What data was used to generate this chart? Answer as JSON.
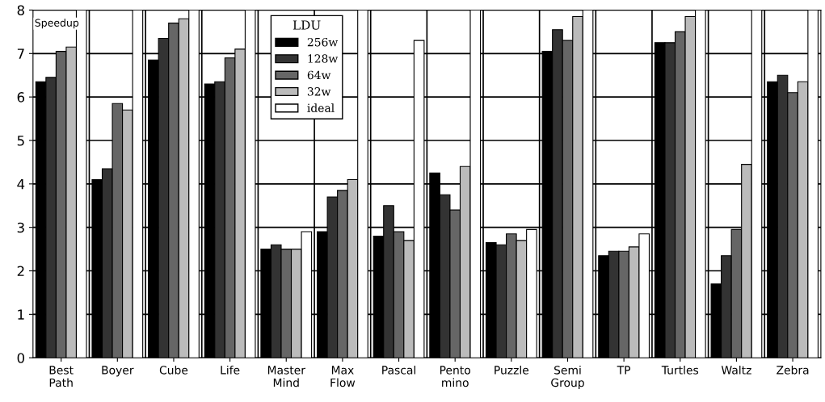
{
  "chart_data": {
    "type": "bar",
    "ylabel": "Speedup",
    "legend_title": "LDU",
    "legend": "top",
    "grid": "y",
    "categories": [
      "Best\nPath",
      "Boyer",
      "Cube",
      "Life",
      "Master\nMind",
      "Max\nFlow",
      "Pascal",
      "Pento\nmino",
      "Puzzle",
      "Semi\nGroup",
      "TP",
      "Turtles",
      "Waltz",
      "Zebra"
    ],
    "series": [
      {
        "name": "256w",
        "color": "#000000",
        "values": [
          6.35,
          4.1,
          6.85,
          6.3,
          2.5,
          2.9,
          2.8,
          4.25,
          2.65,
          7.05,
          2.35,
          7.25,
          1.7,
          6.35
        ]
      },
      {
        "name": "128w",
        "color": "#333333",
        "values": [
          6.45,
          4.35,
          7.35,
          6.35,
          2.6,
          3.7,
          3.5,
          3.75,
          2.6,
          7.55,
          2.45,
          7.25,
          2.35,
          6.5
        ]
      },
      {
        "name": "64w",
        "color": "#666666",
        "values": [
          7.05,
          5.85,
          7.7,
          6.9,
          2.5,
          3.85,
          2.9,
          3.4,
          2.85,
          7.3,
          2.45,
          7.5,
          2.95,
          6.1
        ]
      },
      {
        "name": "32w",
        "color": "#bbbbbb",
        "values": [
          7.15,
          5.7,
          7.8,
          7.1,
          2.5,
          4.1,
          2.7,
          4.4,
          2.7,
          7.85,
          2.55,
          7.85,
          4.45,
          6.35
        ]
      },
      {
        "name": "ideal",
        "color": "#ffffff",
        "values": [
          8,
          8,
          8,
          8,
          2.9,
          8,
          7.3,
          8,
          2.95,
          8,
          2.85,
          8,
          8,
          8
        ]
      }
    ],
    "ylim": [
      0,
      8
    ],
    "yticks": [
      0,
      1,
      2,
      3,
      4,
      5,
      6,
      7,
      8
    ]
  }
}
